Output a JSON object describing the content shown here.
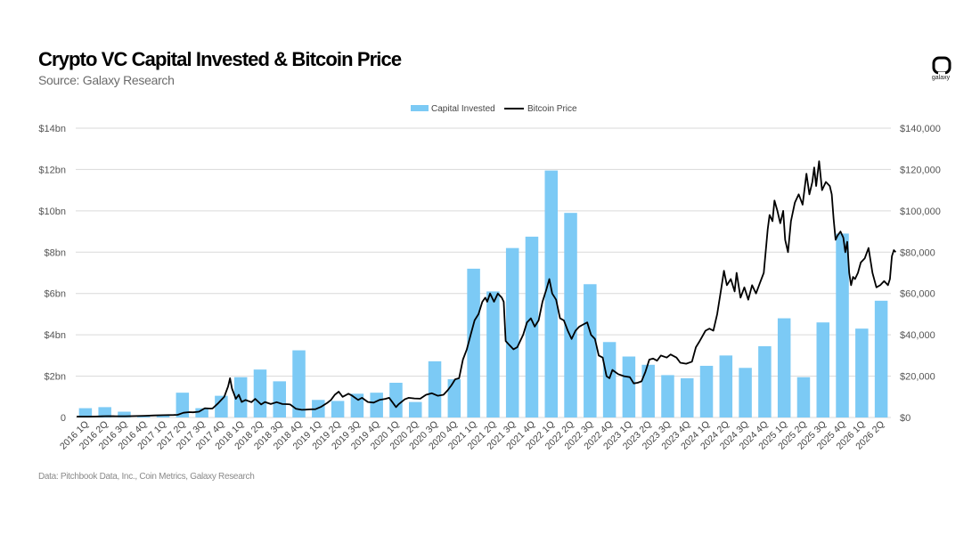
{
  "header": {
    "title": "Crypto VC Capital Invested & Bitcoin Price",
    "subtitle": "Source: Galaxy Research",
    "logo_icon": "galaxy-logo-icon",
    "logo_text": "galaxy"
  },
  "footer": {
    "note": "Data: Pitchbook Data, Inc., Coin Metrics, Galaxy Research"
  },
  "chart_data": {
    "type": "bar+line",
    "legend_position": "top-center",
    "grid": true,
    "colors": {
      "bar": "#7ccaf5",
      "line": "#000000",
      "grid": "#d9d9d9"
    },
    "categories": [
      "2016 1Q",
      "2016 2Q",
      "2016 3Q",
      "2016 4Q",
      "2017 1Q",
      "2017 2Q",
      "2017 3Q",
      "2017 4Q",
      "2018 1Q",
      "2018 2Q",
      "2018 3Q",
      "2018 4Q",
      "2019 1Q",
      "2019 2Q",
      "2019 3Q",
      "2019 4Q",
      "2020 1Q",
      "2020 2Q",
      "2020 3Q",
      "2020 4Q",
      "2021 1Q",
      "2021 2Q",
      "2021 3Q",
      "2021 4Q",
      "2022 1Q",
      "2022 2Q",
      "2022 3Q",
      "2022 4Q",
      "2023 1Q",
      "2023 2Q",
      "2023 3Q",
      "2023 4Q",
      "2024 1Q",
      "2024 2Q",
      "2024 3Q",
      "2024 4Q",
      "2025 1Q",
      "2025 2Q",
      "2025 3Q",
      "2025 4Q",
      "2026 1Q",
      "2026 2Q"
    ],
    "y_left": {
      "ylim": [
        0,
        14
      ],
      "ticks": [
        0,
        2,
        4,
        6,
        8,
        10,
        12,
        14
      ],
      "tick_labels": [
        "0",
        "$2bn",
        "$4bn",
        "$6bn",
        "$8bn",
        "$10bn",
        "$12bn",
        "$14bn"
      ]
    },
    "y_right": {
      "ylim": [
        0,
        140000
      ],
      "ticks": [
        0,
        20000,
        40000,
        60000,
        80000,
        100000,
        120000,
        140000
      ],
      "tick_labels": [
        "$0",
        "$20,000",
        "$40,000",
        "$60,000",
        "$80,000",
        "$100,000",
        "$120,000",
        "$140,000"
      ]
    },
    "series": [
      {
        "name": "Capital Invested",
        "kind": "bar",
        "axis": "left",
        "values": [
          0.45,
          0.5,
          0.28,
          0.05,
          0.12,
          1.2,
          0.45,
          1.05,
          1.95,
          2.32,
          1.75,
          3.25,
          0.85,
          0.8,
          1.15,
          1.2,
          1.68,
          0.75,
          2.72,
          1.85,
          7.2,
          6.1,
          8.2,
          8.75,
          11.95,
          9.9,
          6.45,
          3.65,
          2.95,
          2.55,
          2.05,
          1.9,
          2.5,
          3.0,
          2.4,
          3.45,
          4.8,
          1.95,
          4.6,
          8.9,
          4.3,
          5.65
        ]
      },
      {
        "name": "Bitcoin Price",
        "kind": "line",
        "axis": "right",
        "points": [
          [
            0,
            430
          ],
          [
            0.3,
            440
          ],
          [
            0.6,
            420
          ],
          [
            1.0,
            455
          ],
          [
            1.3,
            560
          ],
          [
            1.6,
            640
          ],
          [
            2.0,
            610
          ],
          [
            2.5,
            605
          ],
          [
            3.0,
            700
          ],
          [
            3.5,
            800
          ],
          [
            4.0,
            1000
          ],
          [
            4.5,
            1100
          ],
          [
            5.0,
            1200
          ],
          [
            5.2,
            1300
          ],
          [
            5.5,
            2300
          ],
          [
            5.8,
            2600
          ],
          [
            6.0,
            2500
          ],
          [
            6.3,
            2800
          ],
          [
            6.6,
            4500
          ],
          [
            6.9,
            4300
          ],
          [
            7.0,
            4400
          ],
          [
            7.3,
            7000
          ],
          [
            7.6,
            10000
          ],
          [
            7.8,
            15000
          ],
          [
            7.9,
            19000
          ],
          [
            8.0,
            14000
          ],
          [
            8.1,
            11500
          ],
          [
            8.2,
            9000
          ],
          [
            8.35,
            11000
          ],
          [
            8.5,
            7500
          ],
          [
            8.7,
            8500
          ],
          [
            9.0,
            7400
          ],
          [
            9.2,
            9000
          ],
          [
            9.5,
            6300
          ],
          [
            9.7,
            7500
          ],
          [
            10.0,
            6500
          ],
          [
            10.3,
            7400
          ],
          [
            10.6,
            6500
          ],
          [
            10.9,
            6400
          ],
          [
            11.0,
            6300
          ],
          [
            11.3,
            4200
          ],
          [
            11.6,
            3700
          ],
          [
            11.8,
            3800
          ],
          [
            12.0,
            3900
          ],
          [
            12.3,
            4000
          ],
          [
            12.6,
            5200
          ],
          [
            12.9,
            7000
          ],
          [
            13.1,
            8500
          ],
          [
            13.3,
            11000
          ],
          [
            13.5,
            12500
          ],
          [
            13.7,
            10000
          ],
          [
            14.0,
            11500
          ],
          [
            14.2,
            10500
          ],
          [
            14.5,
            8500
          ],
          [
            14.7,
            9500
          ],
          [
            15.0,
            7500
          ],
          [
            15.3,
            7200
          ],
          [
            15.6,
            8500
          ],
          [
            15.9,
            9000
          ],
          [
            16.1,
            9500
          ],
          [
            16.3,
            7000
          ],
          [
            16.45,
            5000
          ],
          [
            16.6,
            6500
          ],
          [
            16.9,
            8800
          ],
          [
            17.1,
            9500
          ],
          [
            17.4,
            9200
          ],
          [
            17.7,
            9100
          ],
          [
            18.0,
            11000
          ],
          [
            18.3,
            11700
          ],
          [
            18.6,
            10500
          ],
          [
            18.9,
            11000
          ],
          [
            19.1,
            13000
          ],
          [
            19.3,
            15500
          ],
          [
            19.5,
            18500
          ],
          [
            19.7,
            19000
          ],
          [
            19.9,
            28000
          ],
          [
            20.1,
            33000
          ],
          [
            20.3,
            40000
          ],
          [
            20.5,
            47000
          ],
          [
            20.7,
            50000
          ],
          [
            20.9,
            56000
          ],
          [
            21.05,
            58000
          ],
          [
            21.15,
            56000
          ],
          [
            21.3,
            60000
          ],
          [
            21.5,
            56000
          ],
          [
            21.7,
            60000
          ],
          [
            21.9,
            58000
          ],
          [
            22.0,
            56000
          ],
          [
            22.1,
            37000
          ],
          [
            22.3,
            35000
          ],
          [
            22.5,
            33000
          ],
          [
            22.7,
            34000
          ],
          [
            23.0,
            40000
          ],
          [
            23.2,
            46000
          ],
          [
            23.4,
            48000
          ],
          [
            23.6,
            44000
          ],
          [
            23.8,
            47000
          ],
          [
            24.0,
            56000
          ],
          [
            24.2,
            62000
          ],
          [
            24.35,
            67000
          ],
          [
            24.5,
            60000
          ],
          [
            24.7,
            57000
          ],
          [
            24.9,
            48000
          ],
          [
            25.1,
            47000
          ],
          [
            25.3,
            42000
          ],
          [
            25.5,
            38000
          ],
          [
            25.7,
            42000
          ],
          [
            25.9,
            44000
          ],
          [
            26.1,
            45000
          ],
          [
            26.3,
            46000
          ],
          [
            26.5,
            40000
          ],
          [
            26.7,
            38000
          ],
          [
            26.9,
            30000
          ],
          [
            27.1,
            29000
          ],
          [
            27.3,
            20000
          ],
          [
            27.45,
            19000
          ],
          [
            27.6,
            23000
          ],
          [
            27.9,
            21000
          ],
          [
            28.2,
            20000
          ],
          [
            28.5,
            19500
          ],
          [
            28.7,
            16500
          ],
          [
            28.9,
            16800
          ],
          [
            29.1,
            17500
          ],
          [
            29.3,
            22000
          ],
          [
            29.5,
            28000
          ],
          [
            29.7,
            28500
          ],
          [
            29.9,
            27500
          ],
          [
            30.1,
            30000
          ],
          [
            30.4,
            29000
          ],
          [
            30.6,
            30500
          ],
          [
            30.9,
            29000
          ],
          [
            31.1,
            26500
          ],
          [
            31.4,
            26000
          ],
          [
            31.7,
            27000
          ],
          [
            31.9,
            34000
          ],
          [
            32.1,
            37000
          ],
          [
            32.4,
            42000
          ],
          [
            32.6,
            43000
          ],
          [
            32.8,
            42000
          ],
          [
            33.0,
            50000
          ],
          [
            33.2,
            62000
          ],
          [
            33.35,
            71000
          ],
          [
            33.5,
            64000
          ],
          [
            33.7,
            67000
          ],
          [
            33.9,
            61000
          ],
          [
            34.0,
            70000
          ],
          [
            34.2,
            58000
          ],
          [
            34.4,
            63000
          ],
          [
            34.6,
            57000
          ],
          [
            34.8,
            64000
          ],
          [
            35.0,
            60000
          ],
          [
            35.2,
            65000
          ],
          [
            35.4,
            70000
          ],
          [
            35.6,
            91000
          ],
          [
            35.7,
            98000
          ],
          [
            35.85,
            95000
          ],
          [
            35.95,
            105000
          ],
          [
            36.1,
            100000
          ],
          [
            36.25,
            94000
          ],
          [
            36.4,
            100000
          ],
          [
            36.5,
            86000
          ],
          [
            36.65,
            80000
          ],
          [
            36.8,
            95000
          ],
          [
            37.0,
            104000
          ],
          [
            37.2,
            108000
          ],
          [
            37.4,
            103000
          ],
          [
            37.6,
            118000
          ],
          [
            37.75,
            108000
          ],
          [
            37.9,
            114000
          ],
          [
            38.0,
            121000
          ],
          [
            38.1,
            112000
          ],
          [
            38.25,
            124000
          ],
          [
            38.4,
            110000
          ],
          [
            38.6,
            114000
          ],
          [
            38.8,
            112000
          ],
          [
            38.9,
            108000
          ],
          [
            39.0,
            96000
          ],
          [
            39.1,
            86000
          ],
          [
            39.2,
            88000
          ],
          [
            39.35,
            90000
          ],
          [
            39.5,
            87000
          ],
          [
            39.6,
            80000
          ],
          [
            39.7,
            85000
          ],
          [
            39.8,
            70000
          ],
          [
            39.9,
            64000
          ],
          [
            40.0,
            68000
          ],
          [
            40.1,
            67000
          ],
          [
            40.25,
            70000
          ],
          [
            40.4,
            75000
          ],
          [
            40.6,
            77000
          ],
          [
            40.8,
            82000
          ],
          [
            41.0,
            70000
          ],
          [
            41.2,
            63000
          ],
          [
            41.4,
            64000
          ],
          [
            41.6,
            66000
          ],
          [
            41.8,
            64000
          ],
          [
            41.9,
            67000
          ],
          [
            42.0,
            78000
          ],
          [
            42.1,
            81000
          ],
          [
            42.2,
            80000
          ]
        ]
      }
    ]
  }
}
